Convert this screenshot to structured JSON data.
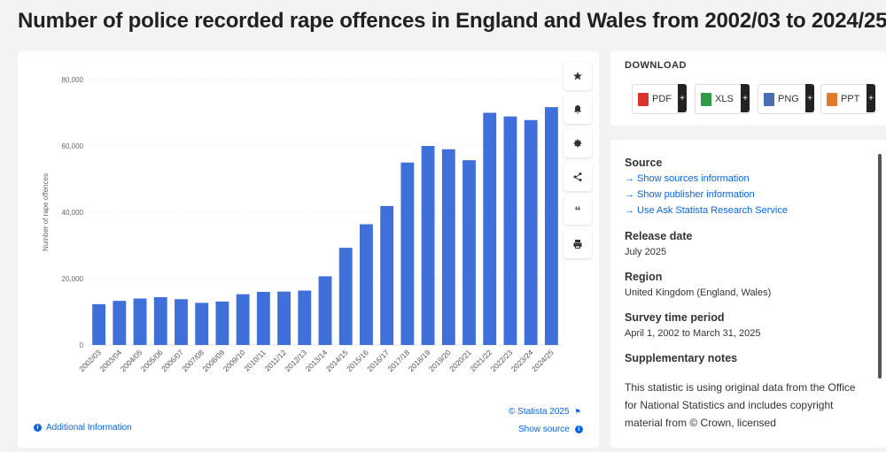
{
  "page": {
    "title": "Number of police recorded rape offences in England and Wales from 2002/03 to 2024/25"
  },
  "toolbar": {
    "buttons": [
      "star-icon",
      "bell-icon",
      "gear-icon",
      "share-icon",
      "quote-icon",
      "print-icon"
    ]
  },
  "download": {
    "label": "DOWNLOAD",
    "buttons": [
      {
        "label": "PDF",
        "color": "#d9342b"
      },
      {
        "label": "XLS",
        "color": "#2e9c45"
      },
      {
        "label": "PNG",
        "color": "#4a6fb0"
      },
      {
        "label": "PPT",
        "color": "#e07a2c"
      }
    ]
  },
  "info": {
    "source_heading": "Source",
    "links": [
      "Show sources information",
      "Show publisher information",
      "Use Ask Statista Research Service"
    ],
    "release_heading": "Release date",
    "release_value": "July 2025",
    "region_heading": "Region",
    "region_value": "United Kingdom (England, Wales)",
    "period_heading": "Survey time period",
    "period_value": "April 1, 2002 to March 31, 2025",
    "notes_heading": "Supplementary notes",
    "notes_text": "This statistic is using original data from the Office for National Statistics and includes copyright material from © Crown, licensed"
  },
  "footer": {
    "additional_info": "Additional Information",
    "copyright": "© Statista 2025",
    "show_source": "Show source"
  },
  "chart_data": {
    "type": "bar",
    "ylabel": "Number of rape offences",
    "ylim": [
      0,
      80000
    ],
    "yticks": [
      0,
      20000,
      40000,
      60000,
      80000
    ],
    "ytick_labels": [
      "0",
      "20,000",
      "40,000",
      "60,000",
      "80,000"
    ],
    "bar_color": "#3f6fd8",
    "grid": true,
    "categories": [
      "2002/03",
      "2003/04",
      "2004/05",
      "2005/06",
      "2006/07",
      "2007/08",
      "2008/09",
      "2009/10",
      "2010/11",
      "2011/12",
      "2012/13",
      "2013/14",
      "2014/15",
      "2015/16",
      "2016/17",
      "2017/18",
      "2018/19",
      "2019/20",
      "2020/21",
      "2021/22",
      "2022/23",
      "2023/24",
      "2024/25"
    ],
    "values": [
      12300,
      13300,
      14000,
      14400,
      13800,
      12700,
      13100,
      15300,
      16000,
      16100,
      16400,
      20700,
      29300,
      36400,
      41900,
      55000,
      60000,
      59000,
      55700,
      70000,
      68900,
      67800,
      71700
    ]
  }
}
